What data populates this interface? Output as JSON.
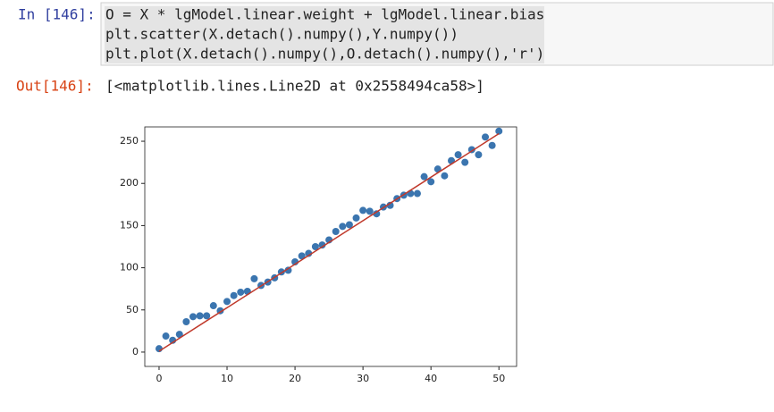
{
  "cell": {
    "prompt_in": "In [146]:",
    "code": [
      "O = X * lgModel.linear.weight + lgModel.linear.bias",
      "plt.scatter(X.detach().numpy(),Y.numpy())",
      "plt.plot(X.detach().numpy(),O.detach().numpy(),'r')"
    ],
    "prompt_out": "Out[146]:",
    "output": "[<matplotlib.lines.Line2D at 0x2558494ca58>]"
  },
  "chart_data": {
    "type": "scatter",
    "x": [
      0,
      1,
      2,
      3,
      4,
      5,
      6,
      7,
      8,
      9,
      10,
      11,
      12,
      13,
      14,
      15,
      16,
      17,
      18,
      19,
      20,
      21,
      22,
      23,
      24,
      25,
      26,
      27,
      28,
      29,
      30,
      31,
      32,
      33,
      34,
      35,
      36,
      37,
      38,
      39,
      40,
      41,
      42,
      43,
      44,
      45,
      46,
      47,
      48,
      49,
      50
    ],
    "series": [
      {
        "type": "scatter",
        "color": "#3b75af",
        "values": [
          4,
          19,
          14,
          21,
          36,
          42,
          43,
          43,
          55,
          49,
          60,
          67,
          71,
          72,
          87,
          79,
          83,
          88,
          95,
          97,
          107,
          114,
          117,
          125,
          127,
          133,
          143,
          149,
          151,
          159,
          168,
          167,
          164,
          172,
          174,
          182,
          186,
          188,
          188,
          208,
          202,
          217,
          209,
          227,
          234,
          225,
          240,
          234,
          255,
          245,
          262
        ]
      },
      {
        "type": "line",
        "color": "#c0392b",
        "x": [
          0,
          50
        ],
        "values": [
          1,
          259
        ]
      }
    ],
    "xlim": [
      -2.1,
      52.6
    ],
    "ylim": [
      -17,
      267
    ],
    "xticks": [
      0,
      10,
      20,
      30,
      40,
      50
    ],
    "yticks": [
      0,
      50,
      100,
      150,
      200,
      250
    ]
  }
}
